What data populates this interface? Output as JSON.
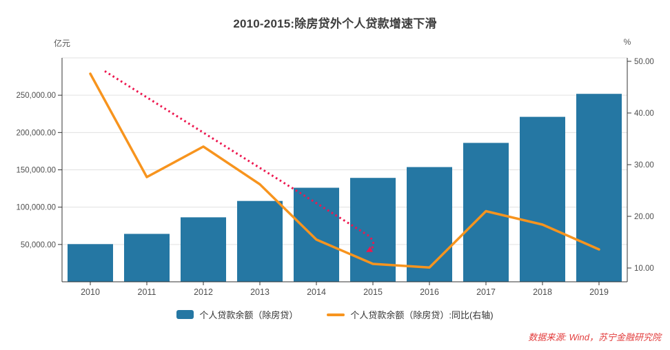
{
  "title": "2010-2015:除房贷外个人贷款增速下滑",
  "left_axis_unit": "亿元",
  "right_axis_unit": "%",
  "source_note": "数据来源: Wind，苏宁金融研究院",
  "colors": {
    "bar": "#2577a3",
    "line": "#f7941e",
    "annotation": "#ed174f",
    "grid": "#e0e0e0",
    "axis": "#333333",
    "source_text": "#e23b3b",
    "title_text": "#3d3d3d"
  },
  "chart_data": {
    "type": "bar+line",
    "title": "2010-2015:除房贷外个人贷款增速下滑",
    "categories": [
      "2010",
      "2011",
      "2012",
      "2013",
      "2014",
      "2015",
      "2016",
      "2017",
      "2018",
      "2019"
    ],
    "series": [
      {
        "name": "个人贷款余额（除房贷）",
        "type": "bar",
        "y_axis": "left",
        "color": "#2577a3",
        "values": [
          50500,
          64200,
          86400,
          108300,
          126000,
          139200,
          153700,
          186100,
          221000,
          251800
        ]
      },
      {
        "name": "个人贷款余额（除房贷）:同比(右轴)",
        "type": "line",
        "y_axis": "right",
        "color": "#f7941e",
        "values": [
          47.6,
          27.6,
          33.5,
          26.2,
          15.5,
          10.8,
          10.1,
          21,
          18.4,
          13.6
        ]
      }
    ],
    "left_axis": {
      "unit": "亿元",
      "min": 0,
      "max": 300000,
      "tick_values": [
        50000,
        100000,
        150000,
        200000,
        250000
      ],
      "tick_labels": [
        "50,000.00",
        "100,000.00",
        "150,000.00",
        "200,000.00",
        "250,000.00"
      ],
      "grid_values": [
        50000,
        100000,
        150000,
        200000,
        250000,
        300000
      ]
    },
    "right_axis": {
      "unit": "%",
      "tick_values": [
        10,
        20,
        30,
        40,
        50
      ],
      "tick_labels": [
        "10.00",
        "20.00",
        "30.00",
        "40.00",
        "50.00"
      ]
    },
    "annotation": {
      "name": "declining-trend-dotted-arrow",
      "color": "#ed174f",
      "start": {
        "year": "2010",
        "value": 48.1
      },
      "end": {
        "year": "2015",
        "value": 13.3
      }
    },
    "legend_position": "bottom",
    "grid": true
  }
}
